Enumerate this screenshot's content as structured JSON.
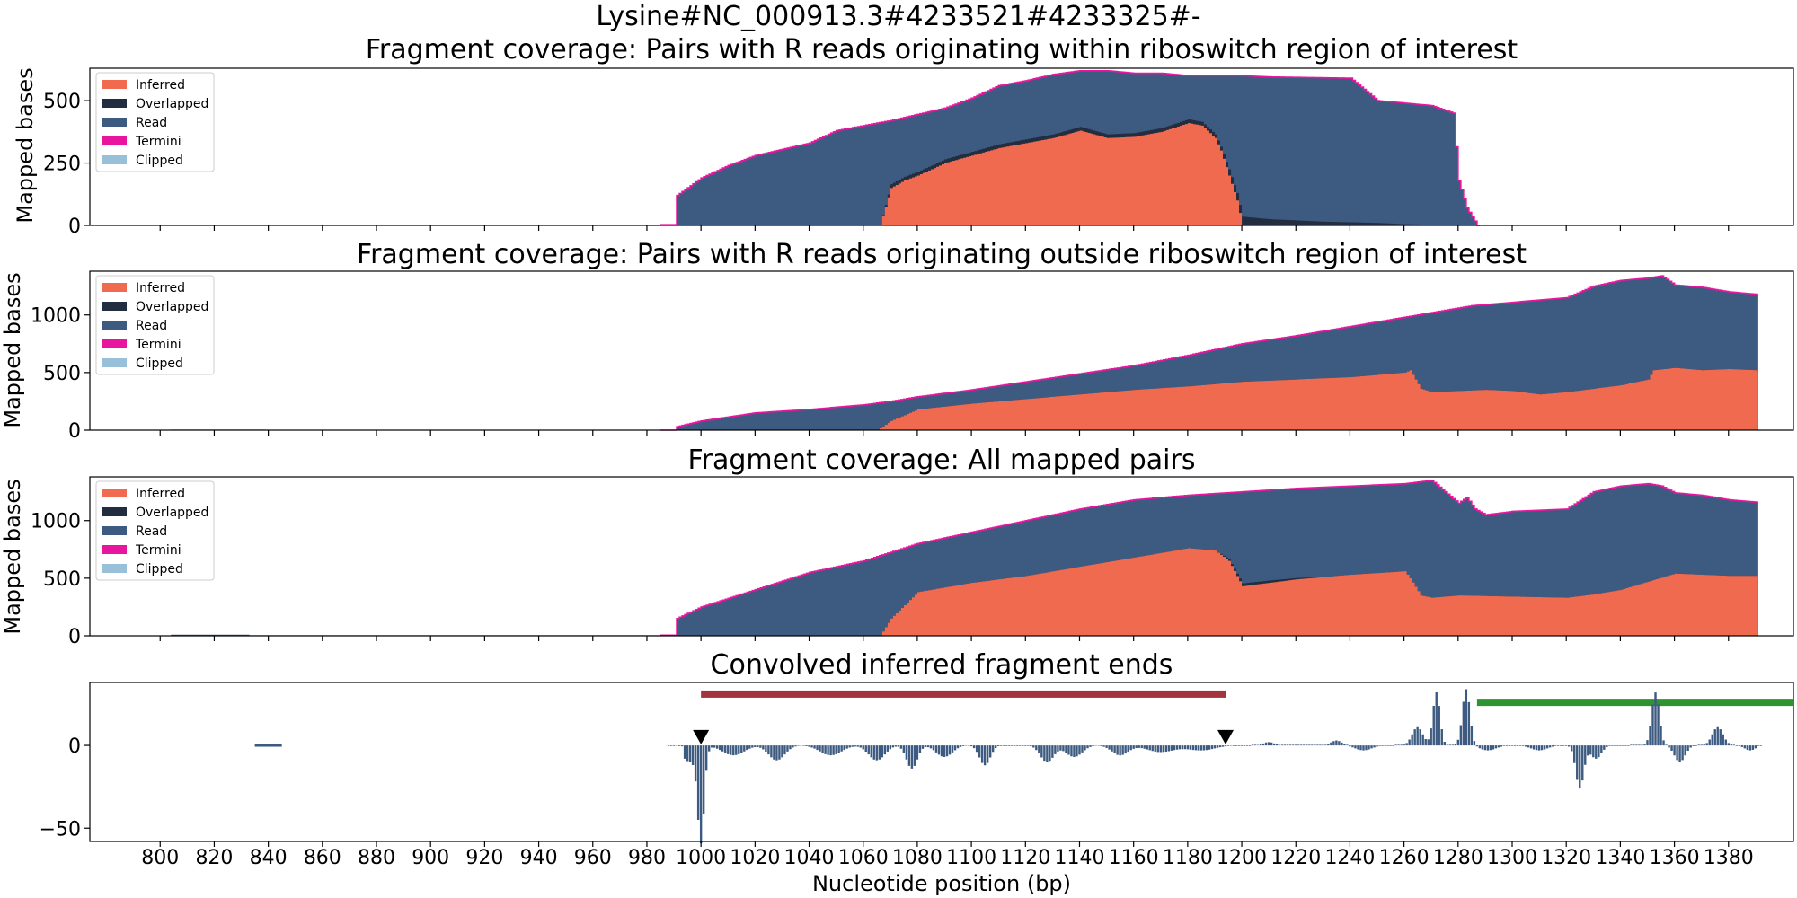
{
  "figure": {
    "suptitle": "Lysine#NC_000913.3#4233521#4233325#-",
    "xlabel": "Nucleotide position (bp)",
    "x_ticks": [
      800,
      820,
      840,
      860,
      880,
      900,
      920,
      940,
      960,
      980,
      1000,
      1020,
      1040,
      1060,
      1080,
      1100,
      1120,
      1140,
      1160,
      1180,
      1200,
      1220,
      1240,
      1260,
      1280,
      1300,
      1320,
      1340,
      1360,
      1380
    ]
  },
  "colors": {
    "inferred": "#ef6a4e",
    "overlapped": "#232d40",
    "read": "#3d5a80",
    "termini": "#e8169f",
    "clipped": "#98c1d9",
    "red_bar": "#a3333d",
    "green_bar": "#2e9331"
  },
  "chart_data": [
    {
      "type": "area",
      "title": "Fragment coverage: Pairs with R reads originating within riboswitch region of interest",
      "ylabel": "Mapped bases",
      "xlim": [
        774,
        1404
      ],
      "ylim": [
        0,
        630
      ],
      "y_ticks": [
        0,
        250,
        500
      ],
      "legend": [
        "Inferred",
        "Overlapped",
        "Read",
        "Termini",
        "Clipped"
      ],
      "legend_position": "top-left",
      "series": [
        {
          "name": "Read",
          "x": [
            804,
            990,
            991,
            1000,
            1010,
            1020,
            1030,
            1040,
            1050,
            1060,
            1070,
            1080,
            1090,
            1100,
            1110,
            1120,
            1130,
            1140,
            1150,
            1160,
            1170,
            1180,
            1190,
            1200,
            1210,
            1240,
            1250,
            1260,
            1270,
            1278,
            1280,
            1283,
            1287
          ],
          "values": [
            3,
            3,
            120,
            190,
            240,
            280,
            305,
            330,
            380,
            400,
            420,
            445,
            470,
            510,
            560,
            580,
            605,
            620,
            620,
            610,
            610,
            600,
            600,
            600,
            595,
            590,
            500,
            490,
            480,
            450,
            180,
            70,
            0
          ]
        },
        {
          "name": "Inferred",
          "x": [
            1066,
            1070,
            1075,
            1080,
            1090,
            1100,
            1110,
            1120,
            1130,
            1140,
            1150,
            1160,
            1170,
            1180,
            1185,
            1190,
            1192,
            1195,
            1198,
            1200
          ],
          "values": [
            0,
            150,
            180,
            200,
            250,
            280,
            310,
            330,
            350,
            380,
            350,
            355,
            375,
            410,
            400,
            350,
            300,
            200,
            100,
            0
          ]
        },
        {
          "name": "Overlapped",
          "x": [
            1066,
            1070,
            1075,
            1192,
            1195,
            1198,
            1200,
            1205,
            1210,
            1230,
            1250,
            1260,
            1270,
            1290
          ],
          "values": [
            0,
            15,
            15,
            15,
            25,
            30,
            35,
            30,
            25,
            15,
            10,
            5,
            3,
            0
          ]
        }
      ]
    },
    {
      "type": "area",
      "title": "Fragment coverage: Pairs with R reads originating outside riboswitch region of interest",
      "ylabel": "Mapped bases",
      "xlim": [
        774,
        1404
      ],
      "ylim": [
        0,
        1380
      ],
      "y_ticks": [
        0,
        500,
        1000
      ],
      "legend": [
        "Inferred",
        "Overlapped",
        "Read",
        "Termini",
        "Clipped"
      ],
      "legend_position": "top-left",
      "series": [
        {
          "name": "Read",
          "x": [
            804,
            838,
            839,
            990,
            991,
            1000,
            1020,
            1040,
            1060,
            1070,
            1080,
            1100,
            1120,
            1140,
            1160,
            1180,
            1200,
            1220,
            1240,
            1260,
            1270,
            1280,
            1285,
            1290,
            1300,
            1310,
            1320,
            1330,
            1340,
            1350,
            1355,
            1360,
            1370,
            1380,
            1390
          ],
          "values": [
            5,
            5,
            0,
            0,
            30,
            80,
            150,
            180,
            220,
            250,
            290,
            350,
            420,
            490,
            560,
            650,
            750,
            820,
            900,
            980,
            1020,
            1060,
            1080,
            1090,
            1110,
            1130,
            1150,
            1250,
            1300,
            1320,
            1340,
            1260,
            1240,
            1200,
            1180
          ]
        },
        {
          "name": "Inferred",
          "x": [
            1065,
            1070,
            1080,
            1100,
            1120,
            1140,
            1160,
            1180,
            1200,
            1220,
            1240,
            1250,
            1260,
            1262,
            1266,
            1270,
            1280,
            1290,
            1300,
            1310,
            1320,
            1330,
            1340,
            1350,
            1352,
            1360,
            1370,
            1380,
            1390
          ],
          "values": [
            0,
            80,
            180,
            230,
            270,
            310,
            350,
            380,
            420,
            440,
            460,
            480,
            500,
            520,
            360,
            330,
            340,
            350,
            340,
            310,
            330,
            360,
            390,
            440,
            520,
            540,
            520,
            530,
            520
          ]
        }
      ]
    },
    {
      "type": "area",
      "title": "Fragment coverage: All mapped pairs",
      "ylabel": "Mapped bases",
      "xlim": [
        774,
        1404
      ],
      "ylim": [
        0,
        1380
      ],
      "y_ticks": [
        0,
        500,
        1000
      ],
      "legend": [
        "Inferred",
        "Overlapped",
        "Read",
        "Termini",
        "Clipped"
      ],
      "legend_position": "top-left",
      "series": [
        {
          "name": "Read",
          "x": [
            804,
            832,
            833,
            990,
            991,
            1000,
            1020,
            1040,
            1060,
            1080,
            1100,
            1120,
            1140,
            1160,
            1180,
            1200,
            1220,
            1240,
            1260,
            1270,
            1275,
            1280,
            1283,
            1286,
            1290,
            1300,
            1320,
            1330,
            1340,
            1350,
            1355,
            1360,
            1370,
            1380,
            1390
          ],
          "values": [
            10,
            10,
            5,
            5,
            150,
            250,
            400,
            550,
            650,
            800,
            900,
            1000,
            1100,
            1180,
            1220,
            1250,
            1280,
            1300,
            1320,
            1350,
            1250,
            1150,
            1200,
            1100,
            1050,
            1080,
            1100,
            1250,
            1300,
            1320,
            1300,
            1240,
            1220,
            1180,
            1160
          ]
        },
        {
          "name": "Inferred",
          "x": [
            1066,
            1070,
            1080,
            1100,
            1120,
            1140,
            1160,
            1180,
            1190,
            1195,
            1200,
            1210,
            1220,
            1240,
            1260,
            1262,
            1266,
            1270,
            1280,
            1300,
            1320,
            1330,
            1340,
            1350,
            1360,
            1370,
            1380,
            1390
          ],
          "values": [
            0,
            150,
            380,
            460,
            520,
            600,
            680,
            760,
            740,
            650,
            430,
            460,
            490,
            530,
            560,
            500,
            350,
            330,
            350,
            340,
            330,
            360,
            400,
            470,
            540,
            530,
            520,
            520
          ]
        },
        {
          "name": "Overlapped",
          "x": [
            1190,
            1195,
            1200,
            1210,
            1220,
            1230
          ],
          "values": [
            0,
            15,
            25,
            20,
            12,
            0
          ]
        }
      ]
    },
    {
      "type": "bar",
      "title": "Convolved inferred fragment ends",
      "ylabel": "",
      "xlim": [
        774,
        1404
      ],
      "ylim": [
        -58,
        38
      ],
      "y_ticks": [
        0,
        -50
      ],
      "bands": [
        {
          "label": "red_bar",
          "from": 1000,
          "to": 1194,
          "y": 31
        },
        {
          "label": "green_bar",
          "from": 1287,
          "to": 1404,
          "y": 26
        }
      ],
      "markers": [
        {
          "x": 1000,
          "y": 5
        },
        {
          "x": 1194,
          "y": 5
        }
      ],
      "peaks": [
        {
          "x": 840,
          "v": 0.6,
          "w": 4
        },
        {
          "x": 1000,
          "v": -55,
          "w": 1.2
        },
        {
          "x": 996,
          "v": -10,
          "w": 3
        },
        {
          "x": 1012,
          "v": -6,
          "w": 4
        },
        {
          "x": 1028,
          "v": -9,
          "w": 3
        },
        {
          "x": 1048,
          "v": -6,
          "w": 4
        },
        {
          "x": 1065,
          "v": -9,
          "w": 3
        },
        {
          "x": 1078,
          "v": -14,
          "w": 2
        },
        {
          "x": 1090,
          "v": -7,
          "w": 3
        },
        {
          "x": 1105,
          "v": -12,
          "w": 2
        },
        {
          "x": 1128,
          "v": -10,
          "w": 2.5
        },
        {
          "x": 1138,
          "v": -7,
          "w": 3
        },
        {
          "x": 1155,
          "v": -6,
          "w": 3
        },
        {
          "x": 1170,
          "v": -4,
          "w": 5
        },
        {
          "x": 1185,
          "v": -3,
          "w": 5
        },
        {
          "x": 1210,
          "v": 2,
          "w": 2
        },
        {
          "x": 1235,
          "v": 3,
          "w": 2
        },
        {
          "x": 1245,
          "v": -3,
          "w": 3
        },
        {
          "x": 1265,
          "v": 11,
          "w": 2
        },
        {
          "x": 1272,
          "v": 32,
          "w": 1.3
        },
        {
          "x": 1283,
          "v": 34,
          "w": 1.4
        },
        {
          "x": 1291,
          "v": -3,
          "w": 3
        },
        {
          "x": 1310,
          "v": -3,
          "w": 3
        },
        {
          "x": 1325,
          "v": -26,
          "w": 1.5
        },
        {
          "x": 1331,
          "v": -8,
          "w": 2
        },
        {
          "x": 1353,
          "v": 32,
          "w": 1.4
        },
        {
          "x": 1362,
          "v": -10,
          "w": 2
        },
        {
          "x": 1376,
          "v": 11,
          "w": 2
        },
        {
          "x": 1388,
          "v": -3,
          "w": 2
        }
      ]
    }
  ]
}
